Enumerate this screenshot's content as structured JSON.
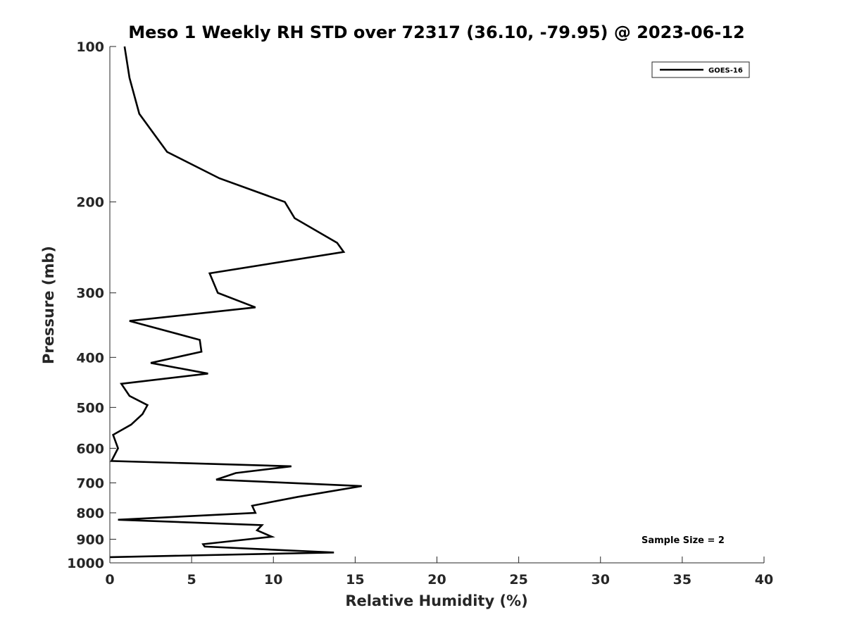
{
  "chart_data": {
    "type": "line",
    "title": "Meso 1 Weekly RH STD over 72317 (36.10, -79.95) @ 2023-06-12",
    "xlabel": "Relative Humidity (%)",
    "ylabel": "Pressure (mb)",
    "xlim": [
      0,
      40
    ],
    "ylim": [
      100,
      1000
    ],
    "y_scale": "log",
    "y_reversed": true,
    "x_ticks": [
      0,
      5,
      10,
      15,
      20,
      25,
      30,
      35,
      40
    ],
    "y_ticks": [
      100,
      200,
      300,
      400,
      500,
      600,
      700,
      800,
      900,
      1000
    ],
    "grid": false,
    "legend_position": "top-right",
    "series": [
      {
        "name": "GOES-16",
        "color": "#000000",
        "x": [
          0.9,
          1.2,
          1.8,
          3.5,
          6.7,
          10.7,
          11.3,
          13.9,
          14.3,
          6.1,
          6.6,
          8.9,
          1.2,
          5.5,
          5.6,
          2.5,
          6.0,
          0.7,
          1.2,
          2.3,
          2.0,
          1.3,
          0.2,
          0.5,
          0.1,
          11.1,
          7.7,
          6.5,
          15.4,
          11.5,
          8.7,
          8.9,
          0.5,
          9.3,
          9.0,
          9.9,
          5.7,
          5.8,
          13.7,
          0.0
        ],
        "y": [
          100,
          115,
          135,
          160,
          180,
          200,
          215,
          240,
          250,
          275,
          300,
          320,
          340,
          370,
          390,
          410,
          430,
          450,
          475,
          495,
          515,
          540,
          565,
          600,
          635,
          650,
          670,
          690,
          710,
          745,
          775,
          800,
          825,
          845,
          865,
          890,
          920,
          930,
          955,
          975
        ]
      }
    ],
    "annotations": [
      "Sample Size = 2"
    ]
  }
}
